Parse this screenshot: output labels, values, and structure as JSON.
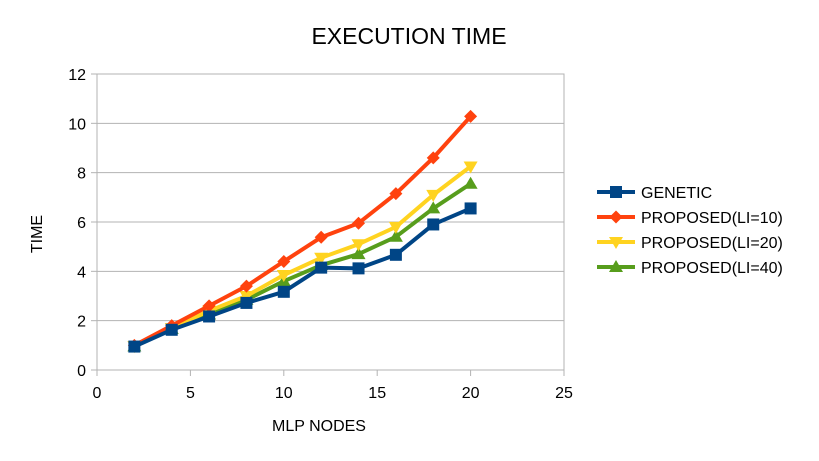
{
  "chart_data": {
    "type": "line",
    "title": "EXECUTION TIME",
    "xlabel": "MLP NODES",
    "ylabel": "TIME",
    "xlim": [
      0,
      25
    ],
    "ylim": [
      0,
      12
    ],
    "xticks": [
      0,
      5,
      10,
      15,
      20,
      25
    ],
    "yticks": [
      0,
      2,
      4,
      6,
      8,
      10,
      12
    ],
    "grid": "horizontal",
    "legend_position": "right",
    "x": [
      2,
      4,
      6,
      8,
      10,
      12,
      14,
      16,
      18,
      20
    ],
    "series": [
      {
        "name": "GENETIC",
        "color": "#004586",
        "marker": "square",
        "values": [
          0.95,
          1.63,
          2.17,
          2.72,
          3.17,
          4.15,
          4.12,
          4.67,
          5.9,
          6.55
        ]
      },
      {
        "name": "PROPOSED(LI=10)",
        "color": "#ff420e",
        "marker": "diamond",
        "values": [
          1.0,
          1.8,
          2.6,
          3.4,
          4.4,
          5.38,
          5.95,
          7.15,
          8.6,
          10.28
        ]
      },
      {
        "name": "PROPOSED(LI=20)",
        "color": "#ffd320",
        "marker": "triangle-down",
        "values": [
          0.97,
          1.7,
          2.4,
          3.0,
          3.85,
          4.55,
          5.1,
          5.8,
          7.1,
          8.25
        ]
      },
      {
        "name": "PROPOSED(LI=40)",
        "color": "#579d1c",
        "marker": "triangle-up",
        "values": [
          0.96,
          1.66,
          2.25,
          2.85,
          3.6,
          4.25,
          4.7,
          5.4,
          6.55,
          7.55
        ]
      }
    ]
  }
}
